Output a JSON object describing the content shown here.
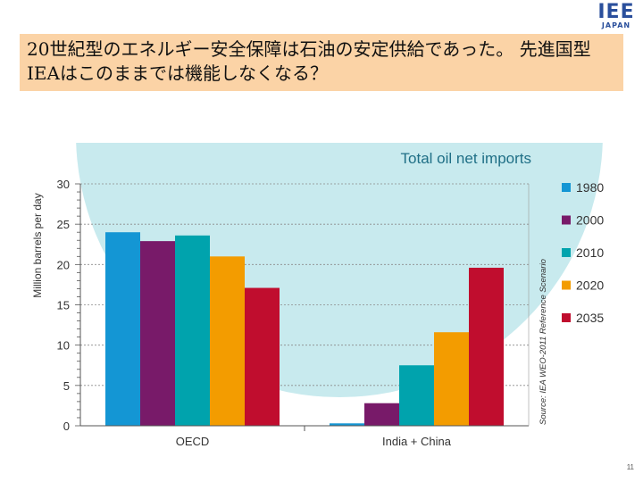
{
  "logo": {
    "text": "IEE",
    "subtext": "JAPAN"
  },
  "headline": "20世紀型のエネルギー安全保障は石油の安定供給であった。 先進国型IEAはこのままでは機能しなくなる？",
  "page_number": "11",
  "chart_data": {
    "type": "bar",
    "title": "Total oil net imports",
    "ylabel": "Million barrels per day",
    "source": "Source: IEA WEO-2011 Reference Scenario",
    "categories": [
      "OECD",
      "India + China"
    ],
    "ylim": [
      0,
      30
    ],
    "yticks": [
      0,
      5,
      10,
      15,
      20,
      25,
      30
    ],
    "grid": true,
    "legend_position": "right",
    "series": [
      {
        "name": "1980",
        "color": "#1496d4",
        "values": [
          24.0,
          0.3
        ]
      },
      {
        "name": "2000",
        "color": "#781a69",
        "values": [
          22.9,
          2.8
        ]
      },
      {
        "name": "2010",
        "color": "#00a3ad",
        "values": [
          23.6,
          7.5
        ]
      },
      {
        "name": "2020",
        "color": "#f39c00",
        "values": [
          21.0,
          11.6
        ]
      },
      {
        "name": "2035",
        "color": "#c00d2e",
        "values": [
          17.1,
          19.6
        ]
      }
    ]
  },
  "colors": {
    "background_arc": "#c8eaee",
    "title": "#1f6f86",
    "axis_text": "#333333",
    "headline_bg": "#fbd3a6",
    "logo": "#2a4f9c"
  }
}
